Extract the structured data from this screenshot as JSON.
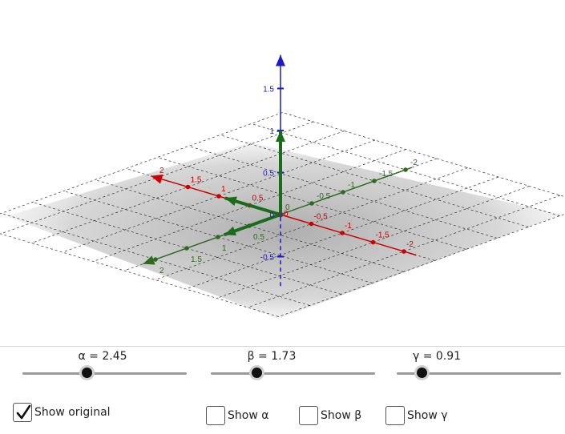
{
  "colors": {
    "x_axis": "#cc0000",
    "y_axis": "#2e6b20",
    "z_axis": "#1a1acc",
    "plane": "#bdbdbd",
    "vector": "#1a6b1a"
  },
  "axes": {
    "x_labels": [
      "2",
      "1.5",
      "1",
      "0.5",
      "0",
      "-0.5",
      "-1",
      "-1.5",
      "-2"
    ],
    "y_labels": [
      "2",
      "1.5",
      "1",
      "0.5",
      "0",
      "-0.5",
      "-1",
      "-1.5",
      "-2"
    ],
    "z_labels": [
      "1.5",
      "1",
      "0.5",
      "0",
      "-0.5"
    ]
  },
  "sliders": [
    {
      "id": "alpha",
      "label": "α = 2.45",
      "value": 2.45,
      "fraction": 0.39
    },
    {
      "id": "beta",
      "label": "β = 1.73",
      "value": 1.73,
      "fraction": 0.28
    },
    {
      "id": "gamma",
      "label": "γ = 0.91",
      "value": 0.91,
      "fraction": 0.15
    }
  ],
  "checkboxes": [
    {
      "id": "show_original",
      "label": "Show original",
      "checked": true
    },
    {
      "id": "show_alpha",
      "label": "Show α",
      "checked": false
    },
    {
      "id": "show_beta",
      "label": "Show β",
      "checked": false
    },
    {
      "id": "show_gamma",
      "label": "Show γ",
      "checked": false
    }
  ]
}
